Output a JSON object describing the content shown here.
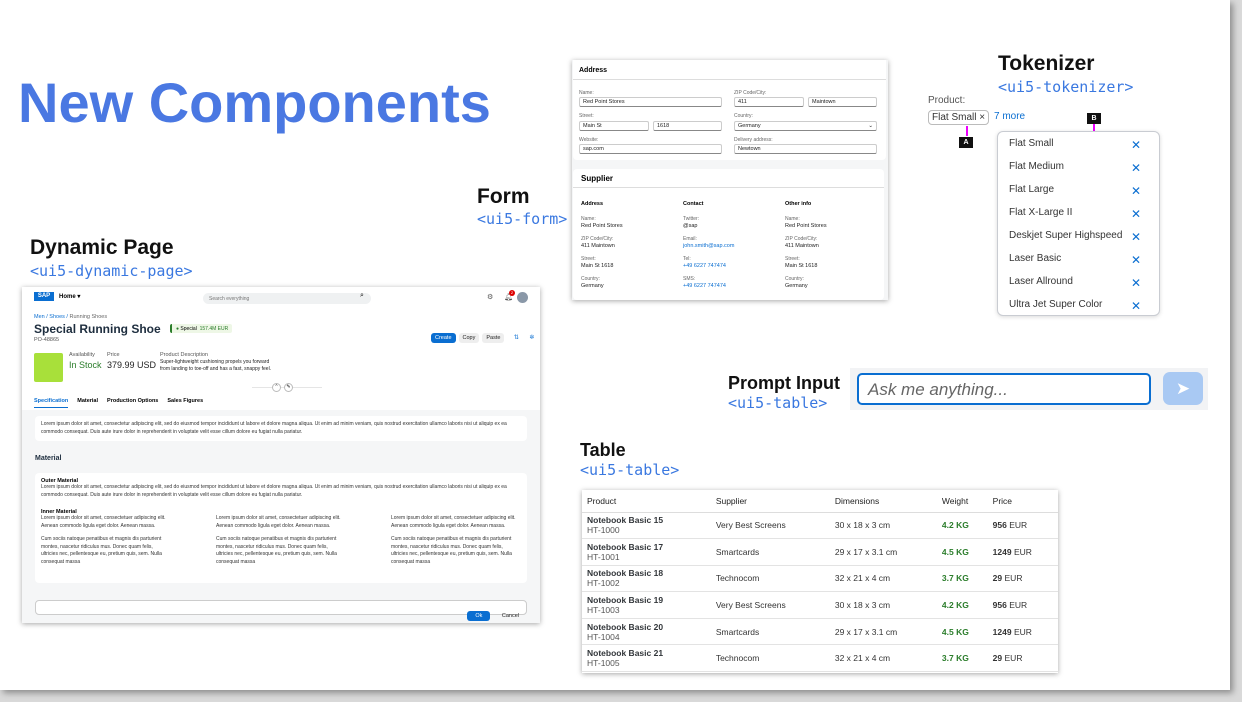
{
  "title": "New Components",
  "sections": {
    "dynamic_page": {
      "label": "Dynamic Page",
      "tag": "<ui5-dynamic-page>"
    },
    "form": {
      "label": "Form",
      "tag": "<ui5-form>"
    },
    "tokenizer": {
      "label": "Tokenizer",
      "tag": "<ui5-tokenizer>"
    },
    "prompt_input": {
      "label": "Prompt Input",
      "tag": "<ui5-table>"
    },
    "table": {
      "label": "Table",
      "tag": "<ui5-table>"
    }
  },
  "dynamic_page": {
    "logo": "SAP",
    "home": "Home",
    "search_placeholder": "Search everything",
    "notif_count": "2",
    "breadcrumb": [
      "Men",
      "Shoes",
      "Running Shoes"
    ],
    "title": "Special Running Shoe",
    "status": "Special",
    "amount": "157.4M EUR",
    "id": "PO-48865",
    "actions": [
      "Create",
      "Copy",
      "Paste"
    ],
    "availability_label": "Availability",
    "availability": "In Stock",
    "price_label": "Price",
    "price": "379.99 USD",
    "desc_label": "Product Description",
    "desc": "Super-lightweight cushioning propels you forward from landing to toe-off and has a fast, snappy feel.",
    "tabs": [
      "Specification",
      "Material",
      "Production Options",
      "Sales Figures"
    ],
    "lorem": "Lorem ipsum dolor sit amet, consectetur adipiscing elit, sed do eiusmod tempor incididunt ut labore et dolore magna aliqua. Ut enim ad minim veniam, quis nostrud exercitation ullamco laboris nisi ut aliquip ex ea commodo consequat. Duis aute irure dolor in reprehenderit in voluptate velit esse cillum dolore eu fugiat nulla pariatur.",
    "material_title": "Material",
    "outer": "Outer Material",
    "inner": "Inner Material",
    "inner_p1": "Lorem ipsum dolor sit amet, consectetuer adipiscing elit. Aenean commodo ligula eget dolor. Aenean massa.",
    "inner_p2": "Cum sociis natoque penatibus et magnis dis parturient montes, nascetur ridiculus mus. Donec quam felis, ultricies nec, pellentesque eu, pretium quis, sem. Nulla consequat massa",
    "ok": "Ok",
    "cancel": "Cancel"
  },
  "form": {
    "address_title": "Address",
    "name_label": "Name:",
    "name": "Red Point Stores",
    "zip_label": "ZIP Code/City:",
    "zip": "411",
    "city": "Maintown",
    "street_label": "Street:",
    "street": "Main St",
    "number": "1618",
    "country_label": "Country:",
    "country": "Germany",
    "website_label": "Website:",
    "website": "sap.com",
    "delivery_label": "Delivery address:",
    "delivery": "Newtown",
    "supplier_title": "Supplier",
    "cols": [
      {
        "head": "Address",
        "items": [
          [
            "Name:",
            "Red Point Stores"
          ],
          [
            "ZIP Code/City:",
            "411 Maintown"
          ],
          [
            "Street:",
            "Main St 1618"
          ],
          [
            "Country:",
            "Germany"
          ]
        ]
      },
      {
        "head": "Contact",
        "items": [
          [
            "Twitter:",
            "@sap"
          ],
          [
            "Email:",
            "john.smith@sap.com"
          ],
          [
            "Tel:",
            "+49 6227 747474"
          ],
          [
            "SMS:",
            "+49 6227 747474"
          ]
        ]
      },
      {
        "head": "Other info",
        "items": [
          [
            "Name:",
            "Red Point Stores"
          ],
          [
            "ZIP Code/City:",
            "411 Maintown"
          ],
          [
            "Street:",
            "Main St 1618"
          ],
          [
            "Country:",
            "Germany"
          ]
        ]
      }
    ]
  },
  "tokenizer": {
    "label": "Product:",
    "token": "Flat Small",
    "more": "7 more",
    "marker_a": "A",
    "marker_b": "B",
    "items": [
      "Flat Small",
      "Flat Medium",
      "Flat Large",
      "Flat X-Large II",
      "Deskjet Super Highspeed",
      "Laser Basic",
      "Laser Allround",
      "Ultra Jet Super Color"
    ]
  },
  "prompt": {
    "placeholder": "Ask me anything..."
  },
  "table": {
    "headers": [
      "Product",
      "Supplier",
      "Dimensions",
      "Weight",
      "Price"
    ],
    "rows": [
      [
        "Notebook Basic 15",
        "HT-1000",
        "Very Best Screens",
        "30 x 18 x 3 cm",
        "4.2 KG",
        "956",
        "EUR"
      ],
      [
        "Notebook Basic 17",
        "HT-1001",
        "Smartcards",
        "29 x 17 x 3.1 cm",
        "4.5 KG",
        "1249",
        "EUR"
      ],
      [
        "Notebook Basic 18",
        "HT-1002",
        "Technocom",
        "32 x 21 x 4 cm",
        "3.7 KG",
        "29",
        "EUR"
      ],
      [
        "Notebook Basic 19",
        "HT-1003",
        "Very Best Screens",
        "30 x 18 x 3 cm",
        "4.2 KG",
        "956",
        "EUR"
      ],
      [
        "Notebook Basic 20",
        "HT-1004",
        "Smartcards",
        "29 x 17 x 3.1 cm",
        "4.5 KG",
        "1249",
        "EUR"
      ],
      [
        "Notebook Basic 21",
        "HT-1005",
        "Technocom",
        "32 x 21 x 4 cm",
        "3.7 KG",
        "29",
        "EUR"
      ]
    ]
  },
  "colors": {
    "accent": "#4a78e2",
    "sap_blue": "#0a6ed1",
    "positive": "#2b7d2b"
  }
}
